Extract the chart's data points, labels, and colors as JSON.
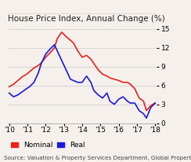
{
  "title": "House Price Index, Annual Change (%)",
  "source": "Source: Valuation & Property Services Department, Global Property Guide",
  "yticks": [
    0,
    3,
    6,
    9,
    12,
    15
  ],
  "xtick_labels": [
    "'10",
    "'11",
    "'12",
    "'13",
    "'14",
    "'15",
    "'16",
    "'17",
    "'18"
  ],
  "nominal_x": [
    0.0,
    0.03,
    0.06,
    0.09,
    0.12,
    0.14,
    0.17,
    0.2,
    0.22,
    0.25,
    0.28,
    0.31,
    0.33,
    0.36,
    0.39,
    0.42,
    0.44,
    0.47,
    0.5,
    0.53,
    0.56,
    0.58,
    0.61,
    0.64,
    0.67,
    0.69,
    0.72,
    0.75,
    0.78,
    0.81,
    0.83,
    0.86,
    0.89,
    0.92,
    0.94,
    0.97,
    1.0
  ],
  "nominal_y": [
    5.8,
    6.2,
    6.8,
    7.4,
    7.8,
    8.2,
    8.8,
    9.2,
    9.6,
    10.5,
    11.2,
    12.0,
    13.5,
    14.5,
    13.8,
    13.2,
    12.8,
    11.5,
    10.5,
    10.8,
    10.2,
    9.5,
    8.5,
    7.8,
    7.5,
    7.2,
    7.0,
    6.8,
    6.5,
    6.5,
    6.2,
    5.5,
    4.0,
    3.5,
    2.0,
    2.8,
    3.2
  ],
  "real_x": [
    0.0,
    0.03,
    0.06,
    0.09,
    0.12,
    0.14,
    0.17,
    0.2,
    0.22,
    0.25,
    0.28,
    0.31,
    0.33,
    0.36,
    0.39,
    0.42,
    0.44,
    0.47,
    0.5,
    0.53,
    0.56,
    0.58,
    0.61,
    0.64,
    0.67,
    0.69,
    0.72,
    0.75,
    0.78,
    0.81,
    0.83,
    0.86,
    0.89,
    0.92,
    0.94,
    0.97,
    1.0
  ],
  "real_y": [
    4.8,
    4.2,
    4.5,
    5.0,
    5.5,
    5.8,
    6.5,
    8.0,
    9.5,
    11.0,
    11.8,
    12.5,
    11.5,
    10.0,
    8.5,
    7.0,
    6.8,
    6.5,
    6.5,
    7.5,
    6.5,
    5.2,
    4.5,
    4.0,
    4.8,
    3.5,
    3.0,
    3.8,
    4.2,
    3.5,
    3.2,
    3.2,
    2.0,
    1.5,
    0.8,
    2.5,
    3.2
  ],
  "nominal_color": "#e8231a",
  "real_color": "#1a1adb",
  "background_color": "#f5f0eb",
  "grid_color": "#cccccc",
  "title_fontsize": 7.5,
  "axis_fontsize": 6.5,
  "source_fontsize": 5.2,
  "legend_fontsize": 6.5,
  "linewidth": 1.2
}
